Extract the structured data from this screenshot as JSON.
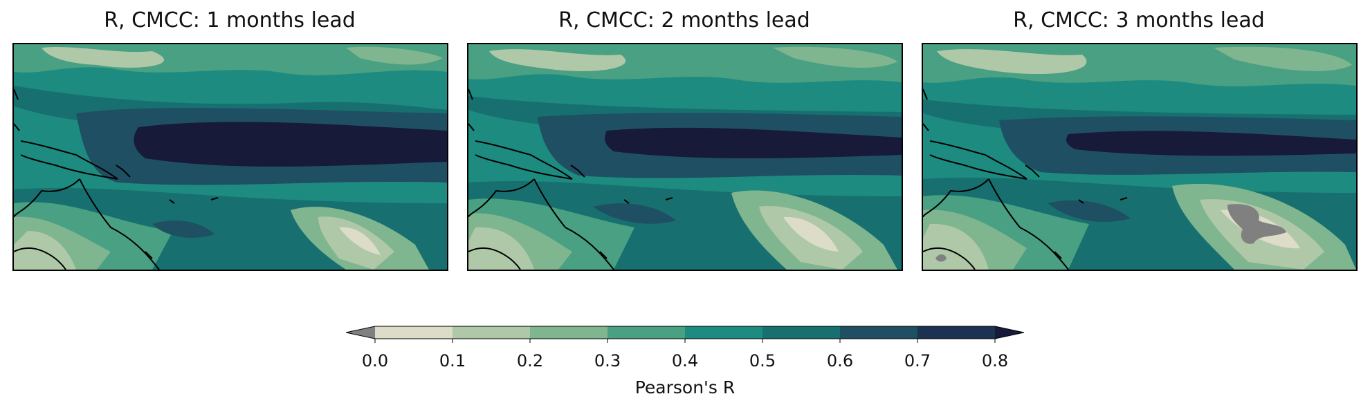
{
  "figure": {
    "panels": [
      {
        "title": "R, CMCC: 1 months lead"
      },
      {
        "title": "R, CMCC: 2 months lead"
      },
      {
        "title": "R, CMCC: 3 months lead"
      }
    ]
  },
  "colorbar": {
    "label": "Pearson's R",
    "ticks": [
      "0.0",
      "0.1",
      "0.2",
      "0.3",
      "0.4",
      "0.5",
      "0.6",
      "0.7",
      "0.8"
    ],
    "levels": [
      0.0,
      0.1,
      0.2,
      0.3,
      0.4,
      0.5,
      0.6,
      0.7,
      0.8
    ],
    "colors": [
      "#dcdcc8",
      "#afc8a8",
      "#7fb68f",
      "#4aa083",
      "#1d8b7f",
      "#17706f",
      "#1f4f63",
      "#1c3252"
    ],
    "under_color": "#808080",
    "over_color": "#181a3a",
    "extend": "both"
  },
  "chart_data": {
    "type": "heatmap",
    "title": "",
    "panel_titles": [
      "R, CMCC: 1 months lead",
      "R, CMCC: 2 months lead",
      "R, CMCC: 3 months lead"
    ],
    "colorbar_label": "Pearson's R",
    "vmin": 0.0,
    "vmax": 0.8,
    "levels": [
      0.0,
      0.1,
      0.2,
      0.3,
      0.4,
      0.5,
      0.6,
      0.7,
      0.8
    ],
    "grid": false,
    "legend": "bottom-center colorbar"
  }
}
